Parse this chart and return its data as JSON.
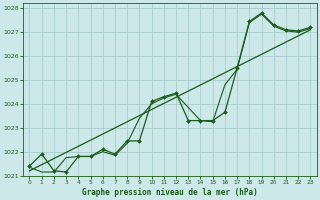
{
  "title": "Graphe pression niveau de la mer (hPa)",
  "bg_color": "#cce8e8",
  "grid_color": "#aacccc",
  "line_color": "#1a5c1a",
  "xlim": [
    -0.5,
    23.5
  ],
  "ylim": [
    1021.0,
    1028.2
  ],
  "yticks": [
    1021,
    1022,
    1023,
    1024,
    1025,
    1026,
    1027,
    1028
  ],
  "xticks": [
    0,
    1,
    2,
    3,
    4,
    5,
    6,
    7,
    8,
    9,
    10,
    11,
    12,
    13,
    14,
    15,
    16,
    17,
    18,
    19,
    20,
    21,
    22,
    23
  ],
  "main_x": [
    0,
    1,
    2,
    3,
    4,
    5,
    6,
    7,
    8,
    9,
    10,
    11,
    12,
    13,
    14,
    15,
    16,
    17,
    18,
    19,
    20,
    21,
    22,
    23
  ],
  "main_y": [
    1021.4,
    1021.9,
    1021.2,
    1021.15,
    1021.8,
    1021.8,
    1022.1,
    1021.9,
    1022.45,
    1022.45,
    1024.1,
    1024.3,
    1024.45,
    1023.3,
    1023.3,
    1023.3,
    1023.65,
    1025.5,
    1027.45,
    1027.8,
    1027.3,
    1027.1,
    1027.05,
    1027.2
  ],
  "smooth_x": [
    0,
    1,
    2,
    3,
    4,
    5,
    6,
    7,
    8,
    9,
    10,
    11,
    12,
    13,
    14,
    15,
    16,
    17,
    18,
    19,
    20,
    21,
    22,
    23
  ],
  "smooth_y": [
    1021.35,
    1021.15,
    1021.15,
    1021.75,
    1021.8,
    1021.8,
    1022.0,
    1021.85,
    1022.35,
    1023.4,
    1024.0,
    1024.25,
    1024.4,
    1023.85,
    1023.3,
    1023.25,
    1024.8,
    1025.45,
    1027.4,
    1027.75,
    1027.25,
    1027.05,
    1027.0,
    1027.15
  ],
  "trend_x": [
    0,
    23
  ],
  "trend_y": [
    1021.2,
    1027.1
  ]
}
